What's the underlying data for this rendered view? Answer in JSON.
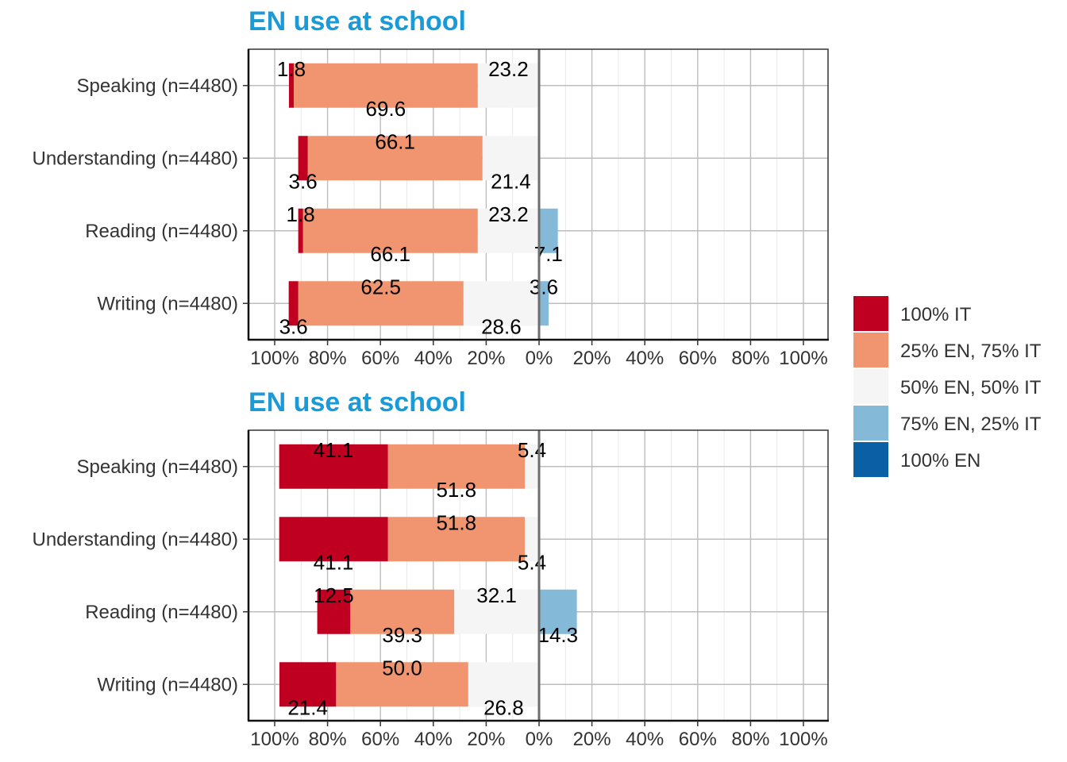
{
  "chart_data": [
    {
      "type": "bar",
      "orientation": "horizontal-diverging",
      "title": "EN use at school",
      "categories": [
        "Speaking (n=4480)",
        "Understanding (n=4480)",
        "Reading (n=4480)",
        "Writing (n=4480)"
      ],
      "series": [
        {
          "name": "100% IT",
          "color": "#c00020",
          "values": [
            1.8,
            3.6,
            1.8,
            3.6
          ]
        },
        {
          "name": "25% EN, 75% IT",
          "color": "#f0956f",
          "values": [
            69.6,
            66.1,
            66.1,
            62.5
          ]
        },
        {
          "name": "50% EN, 50% IT",
          "color": "#f5f5f5",
          "values": [
            23.2,
            21.4,
            23.2,
            28.6
          ]
        },
        {
          "name": "75% EN, 25% IT",
          "color": "#84bad8",
          "values": [
            0,
            0,
            7.1,
            3.6
          ]
        },
        {
          "name": "100% EN",
          "color": "#0b5fa5",
          "values": [
            0,
            0,
            0,
            0
          ]
        }
      ],
      "xlim": [
        -100,
        100
      ],
      "xticks": [
        "100%",
        "80%",
        "60%",
        "40%",
        "20%",
        "0%",
        "20%",
        "40%",
        "60%",
        "80%",
        "100%"
      ],
      "grid": true
    },
    {
      "type": "bar",
      "orientation": "horizontal-diverging",
      "title": "EN use at school",
      "categories": [
        "Speaking (n=4480)",
        "Understanding (n=4480)",
        "Reading (n=4480)",
        "Writing (n=4480)"
      ],
      "series": [
        {
          "name": "100% IT",
          "color": "#c00020",
          "values": [
            41.1,
            41.1,
            12.5,
            21.4
          ]
        },
        {
          "name": "25% EN, 75% IT",
          "color": "#f0956f",
          "values": [
            51.8,
            51.8,
            39.3,
            50.0
          ]
        },
        {
          "name": "50% EN, 50% IT",
          "color": "#f5f5f5",
          "values": [
            5.4,
            5.4,
            32.1,
            26.8
          ]
        },
        {
          "name": "75% EN, 25% IT",
          "color": "#84bad8",
          "values": [
            0,
            0,
            14.3,
            0
          ]
        },
        {
          "name": "100% EN",
          "color": "#0b5fa5",
          "values": [
            0,
            0,
            0,
            0
          ]
        }
      ],
      "xlim": [
        -100,
        100
      ],
      "xticks": [
        "100%",
        "80%",
        "60%",
        "40%",
        "20%",
        "0%",
        "20%",
        "40%",
        "60%",
        "80%",
        "100%"
      ],
      "grid": true
    }
  ],
  "legend": {
    "placement": "right",
    "items": [
      {
        "label": "100% IT",
        "color": "#c00020"
      },
      {
        "label": "25% EN, 75% IT",
        "color": "#f0956f"
      },
      {
        "label": "50% EN, 50% IT",
        "color": "#f5f5f5"
      },
      {
        "label": "75% EN, 25% IT",
        "color": "#84bad8"
      },
      {
        "label": "100% EN",
        "color": "#0b5fa5"
      }
    ]
  }
}
